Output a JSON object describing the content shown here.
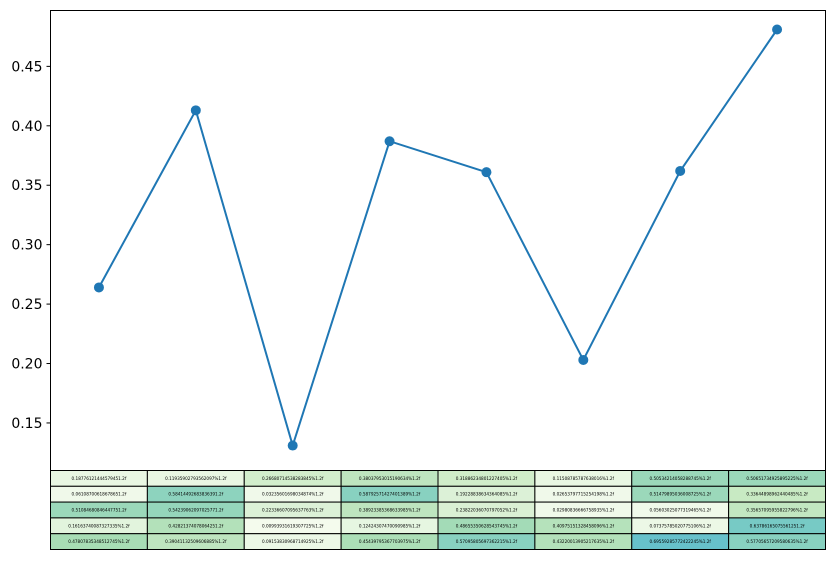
{
  "chart_data": {
    "type": "line",
    "title": "",
    "xlabel": "",
    "ylabel": "",
    "ylim": [
      0.11,
      0.497
    ],
    "yticks": [
      "0.15",
      "0.20",
      "0.25",
      "0.30",
      "0.35",
      "0.40",
      "0.45"
    ],
    "x": [
      0,
      1,
      2,
      3,
      4,
      5,
      6,
      7
    ],
    "series": [
      {
        "values": [
          0.264,
          0.413,
          0.131,
          0.387,
          0.361,
          0.203,
          0.362,
          0.481
        ],
        "color": "#1f77b4"
      }
    ],
    "table": {
      "type": "table",
      "rows": [
        [
          "0.18776121444579451.2f",
          "0.11935902793562097%1.2f",
          "0.26680714538283845%1.2f",
          "0.38037953015190634%1.2f",
          "0.31886234801227405%1.2f",
          "0.11508785787638016%1.2f",
          "0.50534214058288745%1.2f",
          "0.50651734925895225%1.2f"
        ],
        [
          "0.06108700618678651.2f",
          "0.58414492683836391.2f",
          "0.03235601698034874%1.2f",
          "0.58792571427401389%1.2f",
          "0.19228838634364085%1.2f",
          "0.02653797715254198%1.2f",
          "0.51479895036008725%1.2f",
          "0.33644898962440485%1.2f"
        ],
        [
          "0.51084680846447751.2f",
          "0.54239062097025771.2f",
          "0.22336607095637763%1.2f",
          "0.38923385368633985%1.2f",
          "0.23822036070797052%1.2f",
          "0.02980836666758935%1.2f",
          "0.05603025077319465%1.2f",
          "0.35657095955822796%1.2f"
        ],
        [
          "0.16163740087327335%1.2f",
          "0.42821374078064251.2f",
          "0.00993931619307725%1.2f",
          "0.12424307470090985%1.2f",
          "0.48655350628543745%1.2f",
          "0.40975151328458096%1.2f",
          "0.07375785020775106%1.2f",
          "0.63786165075561251.2f"
        ],
        [
          "0.47807835348512745%1.2f",
          "0.39041132509606885%1.2f",
          "0.09153830968714925%1.2f",
          "0.45439795367703975%1.2f",
          "0.57095805697362215%1.2f",
          "0.43220013905217635%1.2f",
          "0.69559285772422245%1.2f",
          "0.57705657209580635%1.2f"
        ]
      ],
      "cell_levels": [
        [
          0.1,
          0.1,
          0.28,
          0.4,
          0.3,
          0.1,
          0.55,
          0.55
        ],
        [
          0.05,
          0.6,
          0.05,
          0.62,
          0.2,
          0.05,
          0.55,
          0.35
        ],
        [
          0.55,
          0.57,
          0.2,
          0.4,
          0.22,
          0.05,
          0.05,
          0.38
        ],
        [
          0.15,
          0.45,
          0.02,
          0.12,
          0.52,
          0.44,
          0.08,
          0.68
        ],
        [
          0.5,
          0.4,
          0.08,
          0.48,
          0.62,
          0.45,
          0.74,
          0.62
        ]
      ]
    }
  }
}
